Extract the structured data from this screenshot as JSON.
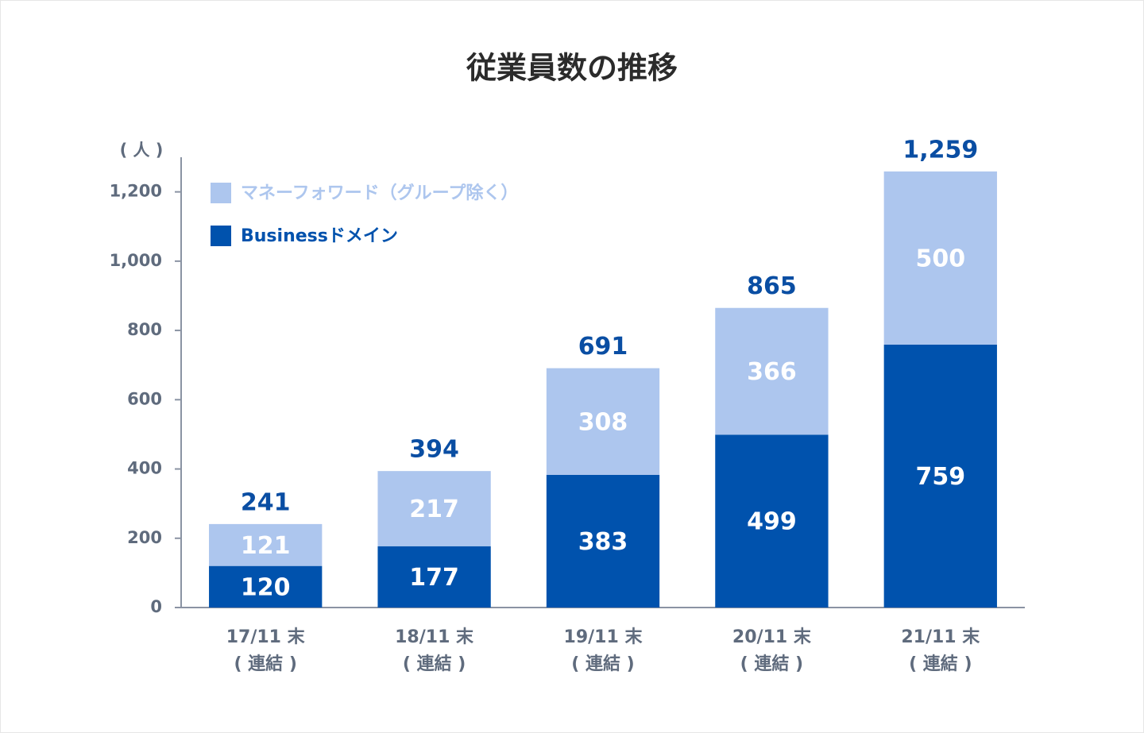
{
  "chart_data": {
    "type": "stacked_bar",
    "title": "従業員数の推移",
    "y_unit": "( 人 )",
    "categories": [
      [
        "17/11 末",
        "( 連結 )"
      ],
      [
        "18/11 末",
        "( 連結 )"
      ],
      [
        "19/11 末",
        "( 連結 )"
      ],
      [
        "20/11 末",
        "( 連結 )"
      ],
      [
        "21/11 末",
        "( 連結 )"
      ]
    ],
    "series": [
      {
        "name": "Businessドメイン",
        "color": "#0052ad",
        "values": [
          120,
          177,
          383,
          499,
          759
        ]
      },
      {
        "name": "マネーフォワード（グループ除く）",
        "color": "#adc6ee",
        "values": [
          121,
          217,
          308,
          366,
          500
        ]
      }
    ],
    "totals": {
      "values": [
        241,
        394,
        691,
        865,
        1259
      ],
      "value_labels": [
        "241",
        "394",
        "691",
        "865",
        "1,259"
      ],
      "color": "#0a4ea3"
    },
    "ylim": [
      0,
      1300
    ],
    "yticks": [
      0,
      200,
      400,
      600,
      800,
      {
        "value": 1000,
        "label": "1,000"
      },
      {
        "value": 1200,
        "label": "1,200"
      }
    ],
    "legend": "top-left"
  }
}
